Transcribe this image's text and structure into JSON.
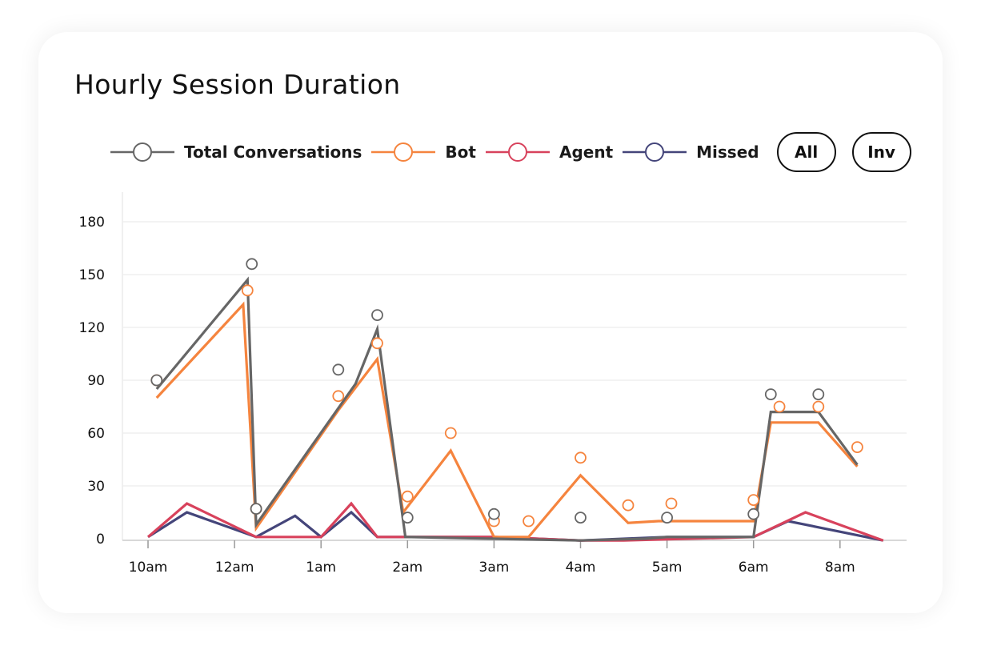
{
  "title": "Hourly Session Duration",
  "legend": {
    "total": "Total Conversations",
    "bot": "Bot",
    "agent": "Agent",
    "missed": "Missed"
  },
  "buttons": {
    "all": "All",
    "inv": "Inv"
  },
  "colors": {
    "total": "#666666",
    "bot": "#f5843e",
    "agent": "#d8425c",
    "missed": "#44457a",
    "grid": "#ececec",
    "axis": "#cccccc"
  },
  "chart_data": {
    "type": "line",
    "title": "Hourly Session Duration",
    "xlabel": "",
    "ylabel": "",
    "x_ticks": [
      "10am",
      "12am",
      "1am",
      "2am",
      "3am",
      "4am",
      "5am",
      "6am",
      "8am"
    ],
    "x_tick_positions": [
      0,
      2,
      4,
      6,
      8,
      10,
      12,
      14,
      16
    ],
    "xlim": [
      -0.2,
      17.5
    ],
    "y_ticks": [
      0,
      30,
      60,
      90,
      120,
      150,
      180
    ],
    "ylim": [
      -2,
      195
    ],
    "grid": true,
    "legend_position": "top",
    "series": [
      {
        "key": "total",
        "line": [
          [
            0.2,
            85
          ],
          [
            2.3,
            147
          ],
          [
            2.5,
            8
          ],
          [
            4.8,
            88
          ],
          [
            5.3,
            119
          ],
          [
            5.95,
            1
          ],
          [
            10.0,
            -1
          ],
          [
            11.5,
            0
          ],
          [
            12.0,
            1
          ],
          [
            14.0,
            1
          ],
          [
            14.4,
            72
          ],
          [
            15.5,
            72
          ],
          [
            16.4,
            42
          ]
        ],
        "markers": [
          [
            0.2,
            90
          ],
          [
            2.4,
            156
          ],
          [
            2.5,
            17
          ],
          [
            4.4,
            96
          ],
          [
            5.3,
            127
          ],
          [
            6.0,
            12
          ],
          [
            8.0,
            14
          ],
          [
            10.0,
            12
          ],
          [
            12.0,
            12
          ],
          [
            14.0,
            14
          ],
          [
            14.4,
            82
          ],
          [
            15.5,
            82
          ]
        ]
      },
      {
        "key": "bot",
        "line": [
          [
            0.2,
            80
          ],
          [
            2.2,
            133
          ],
          [
            2.5,
            6
          ],
          [
            4.4,
            73
          ],
          [
            5.3,
            102
          ],
          [
            5.9,
            15
          ],
          [
            7.0,
            50
          ],
          [
            8.0,
            1
          ],
          [
            8.8,
            1
          ],
          [
            10.0,
            36
          ],
          [
            11.1,
            9
          ],
          [
            11.8,
            10
          ],
          [
            14.0,
            10
          ],
          [
            14.4,
            66
          ],
          [
            15.5,
            66
          ],
          [
            16.4,
            41
          ]
        ],
        "markers": [
          [
            0.2,
            90
          ],
          [
            2.3,
            141
          ],
          [
            2.5,
            17
          ],
          [
            4.4,
            81
          ],
          [
            5.3,
            111
          ],
          [
            6.0,
            24
          ],
          [
            7.0,
            60
          ],
          [
            8.0,
            10
          ],
          [
            8.8,
            10
          ],
          [
            10.0,
            46
          ],
          [
            11.1,
            19
          ],
          [
            12.1,
            20
          ],
          [
            14.0,
            22
          ],
          [
            14.6,
            75
          ],
          [
            15.5,
            75
          ],
          [
            16.4,
            52
          ]
        ]
      },
      {
        "key": "agent",
        "line": [
          [
            0.0,
            1
          ],
          [
            0.9,
            20
          ],
          [
            2.5,
            1
          ],
          [
            4.0,
            1
          ],
          [
            4.7,
            20
          ],
          [
            5.3,
            1
          ],
          [
            8.0,
            1
          ],
          [
            10.0,
            -1
          ],
          [
            11.0,
            -1
          ],
          [
            14.0,
            1
          ],
          [
            15.2,
            15
          ],
          [
            17.0,
            -1
          ]
        ],
        "markers": []
      },
      {
        "key": "missed",
        "line": [
          [
            0.0,
            1
          ],
          [
            0.9,
            15
          ],
          [
            2.5,
            1
          ],
          [
            3.4,
            13
          ],
          [
            4.0,
            1
          ],
          [
            4.7,
            15
          ],
          [
            5.3,
            1
          ],
          [
            8.0,
            1
          ],
          [
            10.0,
            -1
          ],
          [
            12.0,
            1
          ],
          [
            14.0,
            1
          ],
          [
            14.8,
            10
          ],
          [
            17.0,
            -1
          ]
        ],
        "markers": []
      }
    ]
  }
}
